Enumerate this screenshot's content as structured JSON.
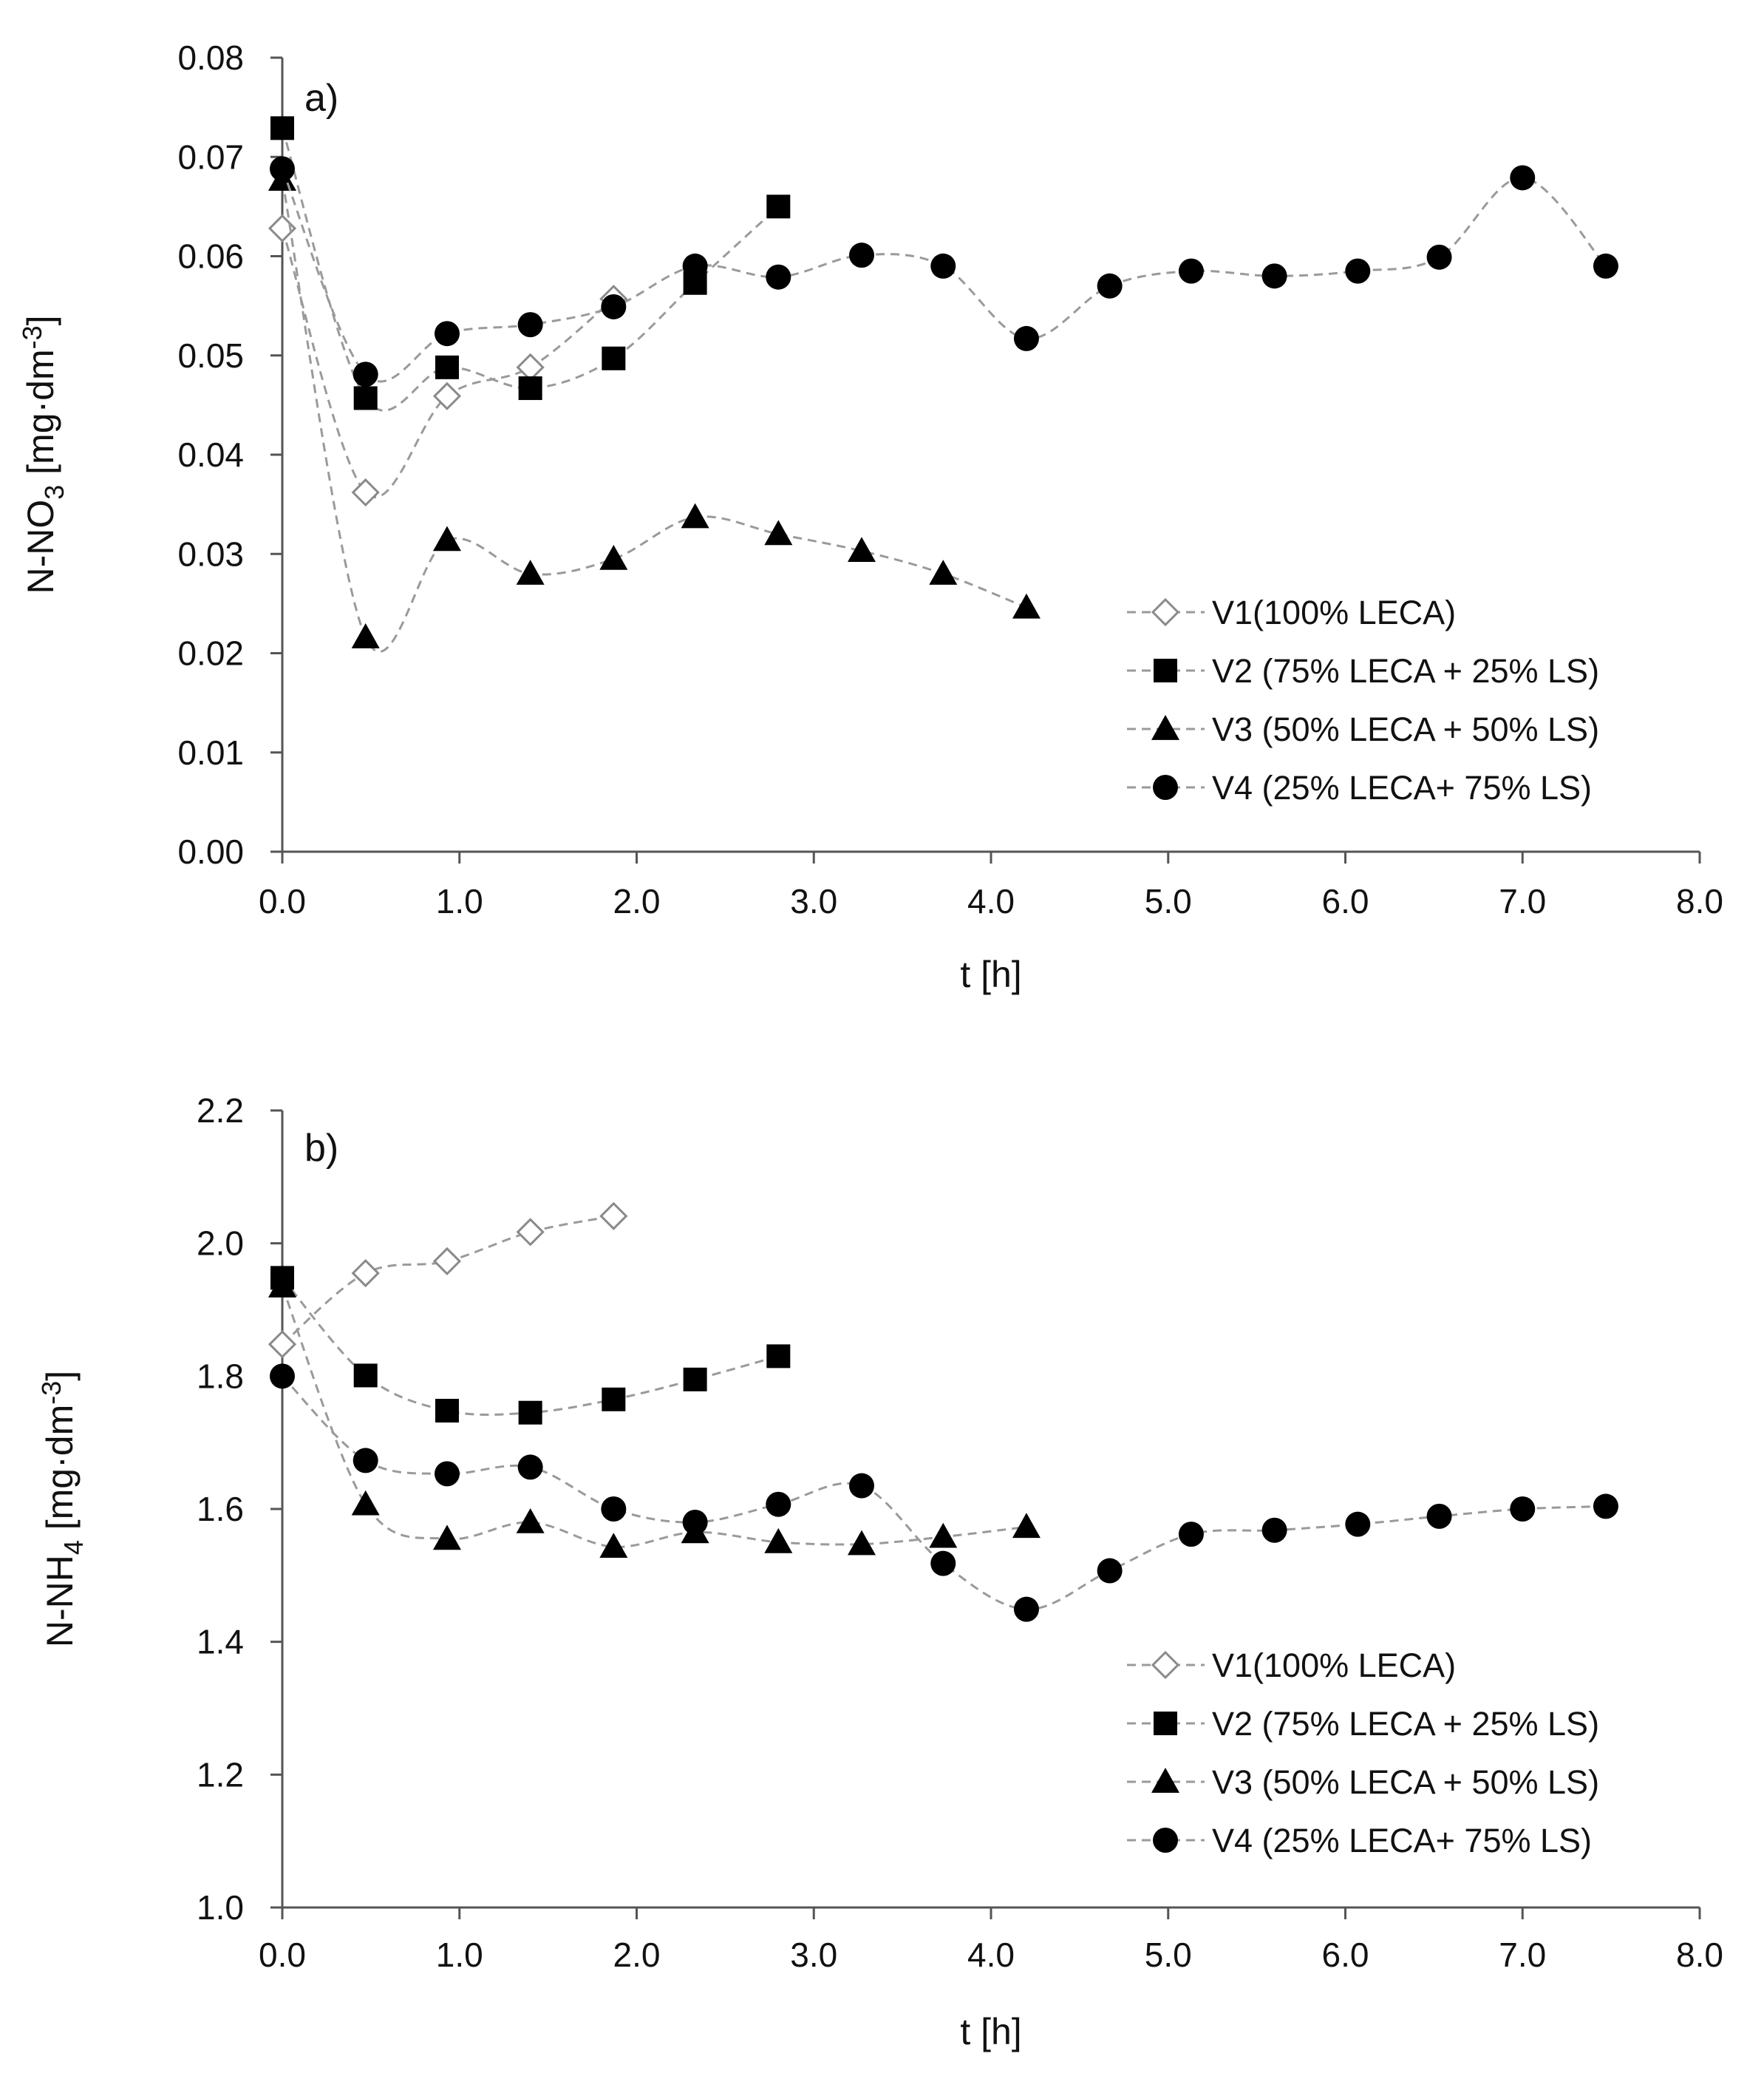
{
  "chart_data": [
    {
      "type": "line",
      "panel_label": "a)",
      "title": "",
      "xlabel": "t [h]",
      "ylabel": {
        "base": "N-NO",
        "sub": "3",
        "unit_pre": " [mg·dm",
        "sup": "-3",
        "unit_post": "]"
      },
      "xlim": [
        0,
        8
      ],
      "ylim": [
        0,
        0.08
      ],
      "x_ticks": [
        "0.0",
        "1.0",
        "2.0",
        "3.0",
        "4.0",
        "5.0",
        "6.0",
        "7.0",
        "8.0"
      ],
      "y_ticks": [
        "0.00",
        "0.01",
        "0.02",
        "0.03",
        "0.04",
        "0.05",
        "0.06",
        "0.07",
        "0.08"
      ],
      "legend_position": "lower-right",
      "series": [
        {
          "name": "V1(100% LECA)",
          "marker": "diamond-open",
          "x": [
            0,
            0.47,
            0.93,
            1.4,
            1.87
          ],
          "y": [
            0.0628,
            0.0362,
            0.0459,
            0.0488,
            0.0557
          ]
        },
        {
          "name": "V2 (75% LECA + 25% LS)",
          "marker": "square",
          "x": [
            0,
            0.47,
            0.93,
            1.4,
            1.87,
            2.33,
            2.8
          ],
          "y": [
            0.0729,
            0.0457,
            0.0488,
            0.0467,
            0.0497,
            0.0573,
            0.065
          ]
        },
        {
          "name": "V3 (50% LECA + 50% LS)",
          "marker": "triangle",
          "x": [
            0,
            0.47,
            0.93,
            1.4,
            1.87,
            2.33,
            2.8,
            3.27,
            3.73,
            4.2
          ],
          "y": [
            0.0677,
            0.0216,
            0.0314,
            0.028,
            0.0295,
            0.0337,
            0.032,
            0.0303,
            0.028,
            0.0246
          ]
        },
        {
          "name": "V4 (25% LECA+ 75% LS)",
          "marker": "circle",
          "x": [
            0,
            0.47,
            0.93,
            1.4,
            1.87,
            2.33,
            2.8,
            3.27,
            3.73,
            4.2,
            4.67,
            5.13,
            5.6,
            6.07,
            6.53,
            7.0,
            7.47
          ],
          "y": [
            0.0688,
            0.0481,
            0.0522,
            0.0531,
            0.0549,
            0.059,
            0.0579,
            0.0601,
            0.059,
            0.0517,
            0.057,
            0.0585,
            0.058,
            0.0585,
            0.0599,
            0.0679,
            0.059
          ]
        }
      ]
    },
    {
      "type": "line",
      "panel_label": "b)",
      "title": "",
      "xlabel": "t [h]",
      "ylabel": {
        "base": "N-NH",
        "sub": "4",
        "unit_pre": " [mg·dm",
        "sup": "-3",
        "unit_post": "]"
      },
      "xlim": [
        0,
        8
      ],
      "ylim": [
        1.0,
        2.2
      ],
      "x_ticks": [
        "0.0",
        "1.0",
        "2.0",
        "3.0",
        "4.0",
        "5.0",
        "6.0",
        "7.0",
        "8.0"
      ],
      "y_ticks": [
        "1.0",
        "1.2",
        "1.4",
        "1.6",
        "1.8",
        "2.0",
        "2.2"
      ],
      "legend_position": "lower-right",
      "series": [
        {
          "name": "V1(100% LECA)",
          "marker": "diamond-open",
          "x": [
            0,
            0.47,
            0.93,
            1.4,
            1.87
          ],
          "y": [
            1.848,
            1.955,
            1.973,
            2.017,
            2.041
          ]
        },
        {
          "name": "V2 (75% LECA + 25% LS)",
          "marker": "square",
          "x": [
            0,
            0.47,
            0.93,
            1.4,
            1.87,
            2.33,
            2.8
          ],
          "y": [
            1.948,
            1.801,
            1.748,
            1.745,
            1.765,
            1.795,
            1.83
          ]
        },
        {
          "name": "V3 (50% LECA + 50% LS)",
          "marker": "triangle",
          "x": [
            0,
            0.47,
            0.93,
            1.4,
            1.87,
            2.33,
            2.8,
            3.27,
            3.73,
            4.2
          ],
          "y": [
            1.935,
            1.607,
            1.555,
            1.58,
            1.543,
            1.565,
            1.55,
            1.547,
            1.558,
            1.573
          ]
        },
        {
          "name": "V4 (25% LECA+ 75% LS)",
          "marker": "circle",
          "x": [
            0,
            0.47,
            0.93,
            1.4,
            1.87,
            2.33,
            2.8,
            3.27,
            3.73,
            4.2,
            4.67,
            5.13,
            5.6,
            6.07,
            6.53,
            7.0,
            7.47
          ],
          "y": [
            1.8,
            1.673,
            1.653,
            1.663,
            1.6,
            1.58,
            1.607,
            1.635,
            1.518,
            1.449,
            1.507,
            1.562,
            1.568,
            1.577,
            1.589,
            1.6,
            1.604
          ]
        }
      ]
    }
  ]
}
